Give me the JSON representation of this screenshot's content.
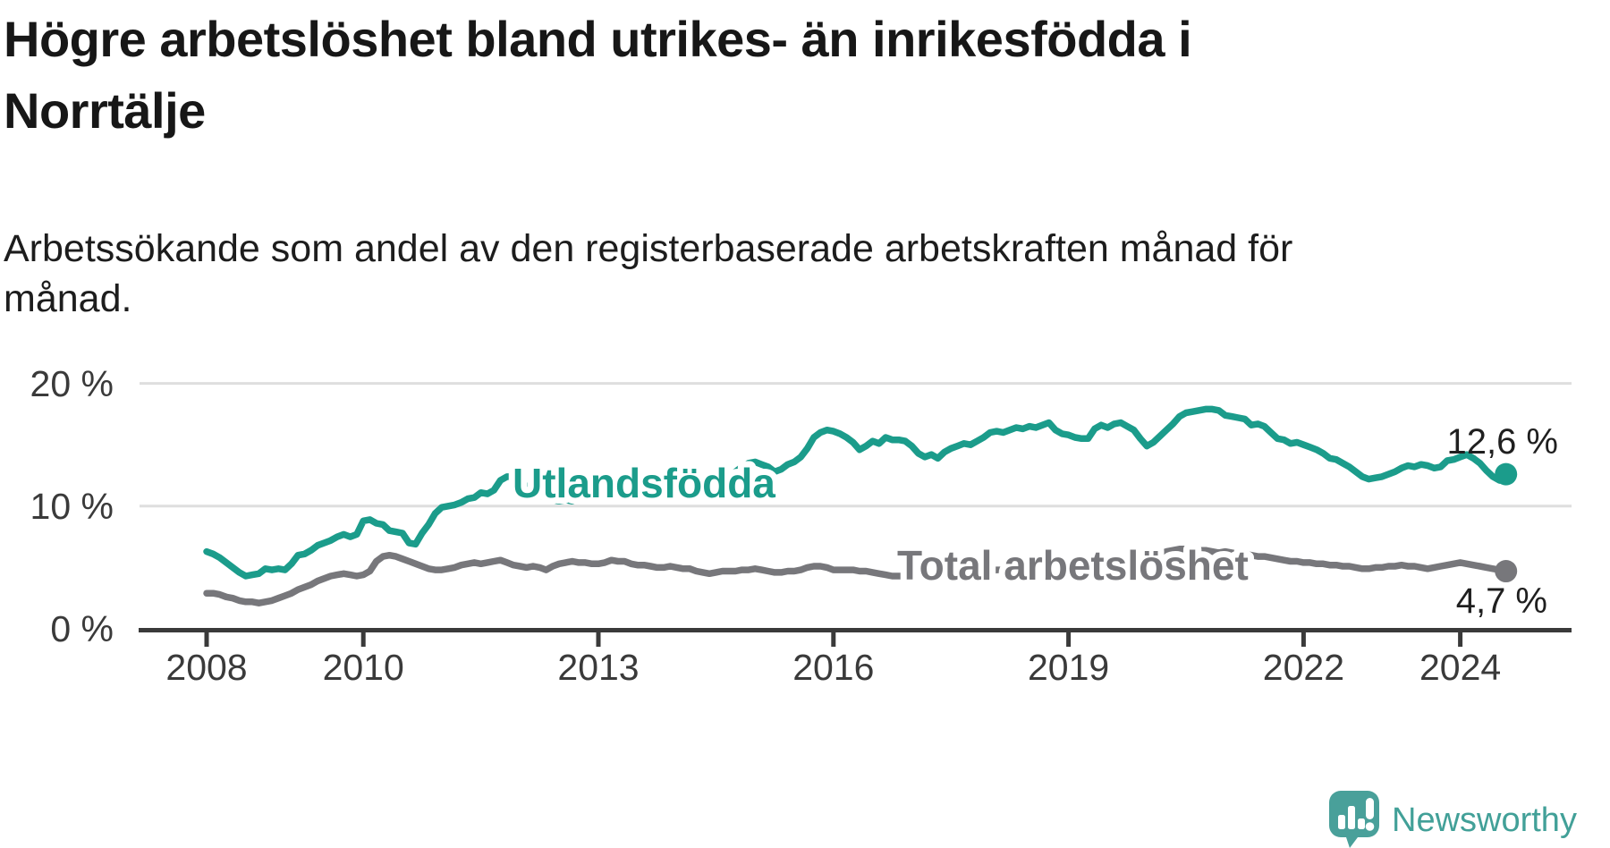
{
  "header": {
    "title": "Högre arbetslöshet bland utrikes- än inrikesfödda i\nNorrtälje",
    "subtitle": "Arbetssökande som andel av den registerbaserade arbetskraften månad för\nmånad."
  },
  "colors": {
    "series_foreign": "#1b9c8b",
    "series_total": "#77777b",
    "grid": "#dedede",
    "axis": "#3a3a3a",
    "text": "#1f1f1f",
    "logo": "#49a09a"
  },
  "logo": {
    "text": "Newsworthy",
    "icon": "newsworthy-speech-bubble-chart-icon"
  },
  "chart_data": {
    "type": "line",
    "title": "Högre arbetslöshet bland utrikes- än inrikesfödda i Norrtälje",
    "subtitle": "Arbetssökande som andel av den registerbaserade arbetskraften månad för månad.",
    "x_start_year": 2008,
    "x_start_month": 1,
    "frequency": "monthly",
    "x_range": [
      2008.0,
      2024.66
    ],
    "ylim": [
      0,
      20.6
    ],
    "grid": "horizontal-only",
    "legend_position": "inline-labels",
    "y_ticks": [
      {
        "label": "0 %",
        "value": 0
      },
      {
        "label": "10 %",
        "value": 10
      },
      {
        "label": "20 %",
        "value": 20
      }
    ],
    "x_ticks": [
      {
        "label": "2008",
        "year": 2008
      },
      {
        "label": "2010",
        "year": 2010
      },
      {
        "label": "2013",
        "year": 2013
      },
      {
        "label": "2016",
        "year": 2016
      },
      {
        "label": "2019",
        "year": 2019
      },
      {
        "label": "2022",
        "year": 2022
      },
      {
        "label": "2024",
        "year": 2024
      }
    ],
    "series": [
      {
        "name": "Utlandsfödda",
        "color": "#1b9c8b",
        "end_label": "12,6 %",
        "end_value": 12.6,
        "values": [
          6.3,
          6.1,
          5.8,
          5.4,
          5.0,
          4.6,
          4.3,
          4.4,
          4.5,
          4.9,
          4.8,
          4.9,
          4.8,
          5.3,
          6.0,
          6.1,
          6.4,
          6.8,
          7.0,
          7.2,
          7.5,
          7.7,
          7.5,
          7.7,
          8.8,
          8.9,
          8.6,
          8.5,
          8.0,
          7.9,
          7.8,
          7.0,
          6.9,
          7.8,
          8.5,
          9.4,
          9.9,
          10.0,
          10.1,
          10.3,
          10.6,
          10.7,
          11.1,
          11.0,
          11.3,
          12.1,
          12.4,
          12.4,
          12.1,
          11.6,
          11.2,
          10.9,
          10.7,
          10.5,
          10.4,
          10.5,
          10.4,
          10.6,
          10.8,
          10.9,
          11.0,
          11.2,
          11.3,
          11.2,
          11.0,
          10.9,
          10.8,
          10.9,
          11.0,
          11.2,
          11.4,
          11.6,
          11.8,
          12.0,
          12.1,
          12.0,
          11.9,
          11.8,
          11.9,
          12.1,
          12.4,
          12.8,
          13.2,
          13.5,
          13.6,
          13.4,
          13.2,
          12.8,
          13.0,
          13.4,
          13.6,
          14.0,
          14.7,
          15.6,
          16.0,
          16.2,
          16.1,
          15.9,
          15.6,
          15.2,
          14.6,
          14.9,
          15.3,
          15.1,
          15.6,
          15.4,
          15.4,
          15.3,
          14.9,
          14.3,
          14.0,
          14.2,
          13.9,
          14.4,
          14.7,
          14.9,
          15.1,
          15.0,
          15.3,
          15.6,
          16.0,
          16.1,
          16.0,
          16.2,
          16.4,
          16.3,
          16.5,
          16.4,
          16.6,
          16.8,
          16.2,
          15.9,
          15.8,
          15.6,
          15.5,
          15.5,
          16.3,
          16.6,
          16.4,
          16.7,
          16.8,
          16.5,
          16.2,
          15.5,
          14.9,
          15.2,
          15.7,
          16.2,
          16.7,
          17.3,
          17.6,
          17.7,
          17.8,
          17.9,
          17.9,
          17.8,
          17.4,
          17.3,
          17.2,
          17.1,
          16.6,
          16.7,
          16.5,
          16.0,
          15.5,
          15.4,
          15.1,
          15.2,
          15.0,
          14.8,
          14.6,
          14.3,
          13.9,
          13.8,
          13.5,
          13.2,
          12.8,
          12.4,
          12.2,
          12.3,
          12.4,
          12.6,
          12.8,
          13.1,
          13.3,
          13.2,
          13.4,
          13.3,
          13.1,
          13.2,
          13.7,
          13.8,
          14.0,
          14.2,
          13.9,
          13.5,
          12.9,
          12.4,
          12.1,
          12.6
        ]
      },
      {
        "name": "Total arbetslöshet",
        "color": "#77777b",
        "end_label": "4,7 %",
        "end_value": 4.7,
        "values": [
          2.9,
          2.9,
          2.8,
          2.6,
          2.5,
          2.3,
          2.2,
          2.2,
          2.1,
          2.2,
          2.3,
          2.5,
          2.7,
          2.9,
          3.2,
          3.4,
          3.6,
          3.9,
          4.1,
          4.3,
          4.4,
          4.5,
          4.4,
          4.3,
          4.4,
          4.7,
          5.5,
          5.9,
          6.0,
          5.9,
          5.7,
          5.5,
          5.3,
          5.1,
          4.9,
          4.8,
          4.8,
          4.9,
          5.0,
          5.2,
          5.3,
          5.4,
          5.3,
          5.4,
          5.5,
          5.6,
          5.4,
          5.2,
          5.1,
          5.0,
          5.1,
          5.0,
          4.8,
          5.1,
          5.3,
          5.4,
          5.5,
          5.4,
          5.4,
          5.3,
          5.3,
          5.4,
          5.6,
          5.5,
          5.5,
          5.3,
          5.2,
          5.2,
          5.1,
          5.0,
          5.0,
          5.1,
          5.0,
          4.9,
          4.9,
          4.7,
          4.6,
          4.5,
          4.6,
          4.7,
          4.7,
          4.7,
          4.8,
          4.8,
          4.9,
          4.8,
          4.7,
          4.6,
          4.6,
          4.7,
          4.7,
          4.8,
          5.0,
          5.1,
          5.1,
          5.0,
          4.8,
          4.8,
          4.8,
          4.8,
          4.7,
          4.7,
          4.6,
          4.5,
          4.4,
          4.3,
          4.3,
          4.3,
          4.4,
          4.4,
          4.4,
          4.3,
          4.3,
          4.3,
          4.4,
          4.5,
          4.5,
          4.6,
          4.6,
          4.6,
          4.7,
          4.8,
          4.8,
          4.9,
          5.0,
          5.0,
          5.1,
          5.1,
          5.0,
          5.1,
          5.1,
          5.1,
          5.1,
          5.2,
          5.2,
          5.2,
          5.3,
          5.3,
          5.4,
          5.4,
          5.4,
          5.5,
          5.5,
          5.6,
          5.7,
          5.9,
          6.1,
          6.3,
          6.4,
          6.5,
          6.5,
          6.5,
          6.4,
          6.4,
          6.3,
          6.2,
          6.3,
          6.2,
          6.1,
          6.1,
          6.0,
          5.9,
          5.9,
          5.8,
          5.7,
          5.6,
          5.5,
          5.5,
          5.4,
          5.4,
          5.3,
          5.3,
          5.2,
          5.2,
          5.1,
          5.1,
          5.0,
          4.9,
          4.9,
          5.0,
          5.0,
          5.1,
          5.1,
          5.2,
          5.1,
          5.1,
          5.0,
          4.9,
          5.0,
          5.1,
          5.2,
          5.3,
          5.4,
          5.3,
          5.2,
          5.1,
          5.0,
          4.9,
          4.8,
          4.7
        ]
      }
    ]
  }
}
